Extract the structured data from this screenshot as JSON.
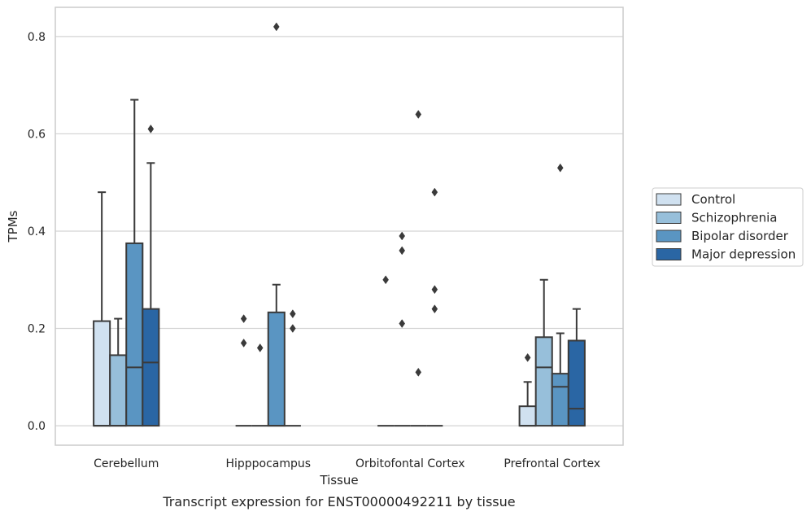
{
  "chart_data": {
    "type": "box",
    "xlabel": "Tissue",
    "ylabel": "TPMs",
    "caption": "Transcript expression for ENST00000492211 by tissue",
    "ylim": [
      -0.04,
      0.86
    ],
    "yticks": [
      0.0,
      0.2,
      0.4,
      0.6,
      0.8
    ],
    "ytick_labels": [
      "0.0",
      "0.2",
      "0.4",
      "0.6",
      "0.8"
    ],
    "grid": "horizontal",
    "legend_position": "right",
    "categories": [
      "Cerebellum",
      "Hipppocampus",
      "Orbitofontal Cortex",
      "Prefrontal Cortex"
    ],
    "series": [
      {
        "name": "Control",
        "color": "#d0e1f0",
        "boxes": [
          {
            "q1": 0.0,
            "median": 0.0,
            "q3": 0.215,
            "whisker_low": 0.0,
            "whisker_high": 0.48,
            "outliers": []
          },
          {
            "q1": 0.0,
            "median": 0.0,
            "q3": 0.0,
            "whisker_low": 0.0,
            "whisker_high": 0.0,
            "outliers": [
              0.17,
              0.22
            ]
          },
          {
            "q1": 0.0,
            "median": 0.0,
            "q3": 0.0,
            "whisker_low": 0.0,
            "whisker_high": 0.0,
            "outliers": [
              0.3
            ]
          },
          {
            "q1": 0.0,
            "median": 0.0,
            "q3": 0.04,
            "whisker_low": 0.0,
            "whisker_high": 0.09,
            "outliers": [
              0.14
            ]
          }
        ]
      },
      {
        "name": "Schizophrenia",
        "color": "#97bfda",
        "boxes": [
          {
            "q1": 0.0,
            "median": 0.0,
            "q3": 0.145,
            "whisker_low": 0.0,
            "whisker_high": 0.22,
            "outliers": []
          },
          {
            "q1": 0.0,
            "median": 0.0,
            "q3": 0.0,
            "whisker_low": 0.0,
            "whisker_high": 0.0,
            "outliers": [
              0.16
            ]
          },
          {
            "q1": 0.0,
            "median": 0.0,
            "q3": 0.0,
            "whisker_low": 0.0,
            "whisker_high": 0.0,
            "outliers": [
              0.21,
              0.36,
              0.39
            ]
          },
          {
            "q1": 0.0,
            "median": 0.12,
            "q3": 0.182,
            "whisker_low": 0.0,
            "whisker_high": 0.3,
            "outliers": []
          }
        ]
      },
      {
        "name": "Bipolar disorder",
        "color": "#5a95c2",
        "boxes": [
          {
            "q1": 0.0,
            "median": 0.12,
            "q3": 0.375,
            "whisker_low": 0.0,
            "whisker_high": 0.67,
            "outliers": []
          },
          {
            "q1": 0.0,
            "median": 0.0,
            "q3": 0.233,
            "whisker_low": 0.0,
            "whisker_high": 0.29,
            "outliers": [
              0.82
            ]
          },
          {
            "q1": 0.0,
            "median": 0.0,
            "q3": 0.0,
            "whisker_low": 0.0,
            "whisker_high": 0.0,
            "outliers": [
              0.11,
              0.64
            ]
          },
          {
            "q1": 0.0,
            "median": 0.08,
            "q3": 0.107,
            "whisker_low": 0.0,
            "whisker_high": 0.19,
            "outliers": [
              0.53
            ]
          }
        ]
      },
      {
        "name": "Major depression",
        "color": "#2a66a4",
        "boxes": [
          {
            "q1": 0.0,
            "median": 0.13,
            "q3": 0.24,
            "whisker_low": 0.0,
            "whisker_high": 0.54,
            "outliers": [
              0.61
            ]
          },
          {
            "q1": 0.0,
            "median": 0.0,
            "q3": 0.0,
            "whisker_low": 0.0,
            "whisker_high": 0.0,
            "outliers": [
              0.2,
              0.23
            ]
          },
          {
            "q1": 0.0,
            "median": 0.0,
            "q3": 0.0,
            "whisker_low": 0.0,
            "whisker_high": 0.0,
            "outliers": [
              0.24,
              0.28,
              0.48
            ]
          },
          {
            "q1": 0.0,
            "median": 0.035,
            "q3": 0.175,
            "whisker_low": 0.0,
            "whisker_high": 0.24,
            "outliers": []
          }
        ]
      }
    ]
  },
  "colors": {
    "edge": "#3a3a3a",
    "grid": "#d3d3d3",
    "frame": "#cccccc"
  }
}
